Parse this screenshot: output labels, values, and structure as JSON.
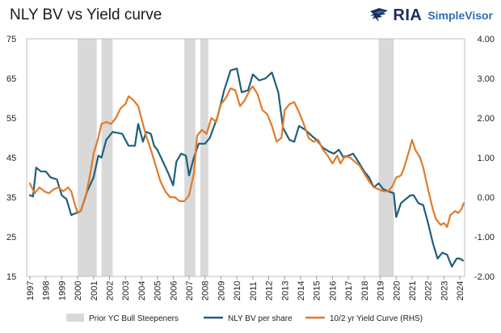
{
  "header": {
    "title": "NLY BV vs Yield curve",
    "logo_brand": "RIA",
    "logo_product": "SimpleVisor"
  },
  "chart_data": {
    "type": "line",
    "title": "NLY BV vs Yield curve",
    "x_range": [
      1996.8,
      2024.3
    ],
    "left_axis": {
      "ylim": [
        15,
        75
      ],
      "ticks": [
        "15",
        "25",
        "35",
        "45",
        "55",
        "65",
        "75"
      ]
    },
    "right_axis": {
      "ylim": [
        -2.0,
        4.0
      ],
      "ticks": [
        "-2.00",
        "-1.00",
        "0.00",
        "1.00",
        "2.00",
        "3.00",
        "4.00"
      ]
    },
    "x_ticks": [
      "1997",
      "1998",
      "1999",
      "2000",
      "2001",
      "2002",
      "2003",
      "2004",
      "2005",
      "2006",
      "2007",
      "2008",
      "2009",
      "2010",
      "2011",
      "2012",
      "2013",
      "2014",
      "2015",
      "2016",
      "2017",
      "2018",
      "2019",
      "2020",
      "2021",
      "2022",
      "2023",
      "2024"
    ],
    "grid": false,
    "legend_placement": "bottom",
    "shaded_periods": {
      "name": "Prior YC Bull Steepeners",
      "color": "#d9d9d9",
      "ranges": [
        [
          2000.0,
          2001.2
        ],
        [
          2001.5,
          2002.2
        ],
        [
          2006.7,
          2007.4
        ],
        [
          2007.7,
          2008.2
        ],
        [
          2018.9,
          2019.85
        ]
      ]
    },
    "series": [
      {
        "name": "NLY BV per share",
        "axis": "left",
        "color": "#1f5f7a",
        "points": [
          [
            1997.0,
            35.5
          ],
          [
            1997.2,
            35.2
          ],
          [
            1997.4,
            42.5
          ],
          [
            1997.7,
            41.5
          ],
          [
            1998.0,
            41.5
          ],
          [
            1998.3,
            40.0
          ],
          [
            1998.7,
            39.5
          ],
          [
            1999.0,
            35.5
          ],
          [
            1999.3,
            34.5
          ],
          [
            1999.6,
            30.5
          ],
          [
            1999.9,
            31.0
          ],
          [
            2000.2,
            31.5
          ],
          [
            2000.6,
            36.5
          ],
          [
            2001.0,
            40.0
          ],
          [
            2001.3,
            45.5
          ],
          [
            2001.5,
            45.0
          ],
          [
            2001.8,
            49.5
          ],
          [
            2002.2,
            51.5
          ],
          [
            2002.8,
            51.0
          ],
          [
            2003.2,
            48.0
          ],
          [
            2003.6,
            48.0
          ],
          [
            2003.8,
            53.5
          ],
          [
            2004.1,
            49.0
          ],
          [
            2004.3,
            51.5
          ],
          [
            2004.6,
            51.0
          ],
          [
            2004.8,
            48.0
          ],
          [
            2005.0,
            47.0
          ],
          [
            2005.3,
            44.5
          ],
          [
            2005.7,
            41.0
          ],
          [
            2006.0,
            38.0
          ],
          [
            2006.2,
            44.0
          ],
          [
            2006.5,
            46.0
          ],
          [
            2006.8,
            45.5
          ],
          [
            2007.0,
            40.5
          ],
          [
            2007.3,
            45.0
          ],
          [
            2007.6,
            48.5
          ],
          [
            2008.0,
            48.5
          ],
          [
            2008.3,
            50.0
          ],
          [
            2008.8,
            55.5
          ],
          [
            2009.2,
            62.0
          ],
          [
            2009.6,
            67.0
          ],
          [
            2010.0,
            67.5
          ],
          [
            2010.3,
            61.5
          ],
          [
            2010.7,
            62.0
          ],
          [
            2011.0,
            66.0
          ],
          [
            2011.4,
            64.5
          ],
          [
            2011.8,
            65.0
          ],
          [
            2012.2,
            66.5
          ],
          [
            2012.6,
            61.5
          ],
          [
            2012.9,
            52.5
          ],
          [
            2013.3,
            49.5
          ],
          [
            2013.6,
            49.0
          ],
          [
            2013.9,
            53.0
          ],
          [
            2014.3,
            52.0
          ],
          [
            2014.7,
            50.5
          ],
          [
            2015.0,
            49.5
          ],
          [
            2015.4,
            47.5
          ],
          [
            2015.8,
            46.5
          ],
          [
            2016.1,
            46.0
          ],
          [
            2016.4,
            47.0
          ],
          [
            2016.7,
            45.0
          ],
          [
            2017.0,
            45.5
          ],
          [
            2017.3,
            46.0
          ],
          [
            2017.7,
            43.5
          ],
          [
            2018.0,
            41.5
          ],
          [
            2018.3,
            40.0
          ],
          [
            2018.6,
            37.5
          ],
          [
            2018.9,
            38.5
          ],
          [
            2019.2,
            37.0
          ],
          [
            2019.5,
            36.5
          ],
          [
            2019.85,
            36.0
          ],
          [
            2020.0,
            30.0
          ],
          [
            2020.3,
            33.5
          ],
          [
            2020.6,
            34.5
          ],
          [
            2020.9,
            35.5
          ],
          [
            2021.1,
            35.5
          ],
          [
            2021.4,
            33.5
          ],
          [
            2021.7,
            33.0
          ],
          [
            2022.0,
            28.5
          ],
          [
            2022.3,
            23.5
          ],
          [
            2022.6,
            19.5
          ],
          [
            2022.9,
            21.0
          ],
          [
            2023.2,
            20.5
          ],
          [
            2023.5,
            17.5
          ],
          [
            2023.8,
            19.5
          ],
          [
            2024.0,
            19.5
          ],
          [
            2024.2,
            19.0
          ]
        ]
      },
      {
        "name": "10/2 yr Yield Curve (RHS)",
        "axis": "right",
        "color": "#e07b2a",
        "points": [
          [
            1997.0,
            0.35
          ],
          [
            1997.3,
            0.1
          ],
          [
            1997.6,
            0.25
          ],
          [
            1997.9,
            0.15
          ],
          [
            1998.2,
            0.1
          ],
          [
            1998.5,
            0.2
          ],
          [
            1998.8,
            0.25
          ],
          [
            1999.1,
            0.15
          ],
          [
            1999.4,
            0.25
          ],
          [
            1999.6,
            0.15
          ],
          [
            1999.8,
            -0.15
          ],
          [
            2000.0,
            -0.4
          ],
          [
            2000.2,
            -0.35
          ],
          [
            2000.5,
            0.0
          ],
          [
            2000.8,
            0.6
          ],
          [
            2001.0,
            1.1
          ],
          [
            2001.3,
            1.5
          ],
          [
            2001.5,
            1.85
          ],
          [
            2001.8,
            1.9
          ],
          [
            2002.1,
            1.85
          ],
          [
            2002.4,
            2.0
          ],
          [
            2002.7,
            2.25
          ],
          [
            2003.0,
            2.35
          ],
          [
            2003.2,
            2.55
          ],
          [
            2003.5,
            2.45
          ],
          [
            2003.8,
            2.3
          ],
          [
            2004.0,
            2.0
          ],
          [
            2004.3,
            1.55
          ],
          [
            2004.6,
            1.2
          ],
          [
            2004.9,
            0.8
          ],
          [
            2005.2,
            0.4
          ],
          [
            2005.5,
            0.15
          ],
          [
            2005.8,
            0.0
          ],
          [
            2006.1,
            0.0
          ],
          [
            2006.4,
            -0.1
          ],
          [
            2006.7,
            -0.1
          ],
          [
            2007.0,
            0.05
          ],
          [
            2007.3,
            0.6
          ],
          [
            2007.5,
            1.55
          ],
          [
            2007.8,
            1.7
          ],
          [
            2008.1,
            1.6
          ],
          [
            2008.4,
            2.0
          ],
          [
            2008.7,
            1.9
          ],
          [
            2009.0,
            2.35
          ],
          [
            2009.3,
            2.5
          ],
          [
            2009.6,
            2.75
          ],
          [
            2009.9,
            2.7
          ],
          [
            2010.2,
            2.3
          ],
          [
            2010.5,
            2.45
          ],
          [
            2010.8,
            2.7
          ],
          [
            2011.0,
            2.8
          ],
          [
            2011.3,
            2.6
          ],
          [
            2011.6,
            2.2
          ],
          [
            2011.9,
            2.1
          ],
          [
            2012.2,
            1.8
          ],
          [
            2012.5,
            1.4
          ],
          [
            2012.8,
            1.5
          ],
          [
            2013.0,
            2.2
          ],
          [
            2013.3,
            2.35
          ],
          [
            2013.6,
            2.4
          ],
          [
            2013.9,
            2.15
          ],
          [
            2014.2,
            1.85
          ],
          [
            2014.5,
            1.5
          ],
          [
            2014.8,
            1.4
          ],
          [
            2015.1,
            1.45
          ],
          [
            2015.4,
            1.2
          ],
          [
            2015.7,
            1.05
          ],
          [
            2016.0,
            0.85
          ],
          [
            2016.3,
            1.05
          ],
          [
            2016.5,
            0.85
          ],
          [
            2016.8,
            1.05
          ],
          [
            2017.1,
            1.0
          ],
          [
            2017.4,
            0.9
          ],
          [
            2017.7,
            0.8
          ],
          [
            2018.0,
            0.6
          ],
          [
            2018.3,
            0.4
          ],
          [
            2018.6,
            0.25
          ],
          [
            2018.9,
            0.2
          ],
          [
            2019.2,
            0.15
          ],
          [
            2019.5,
            0.15
          ],
          [
            2019.8,
            0.3
          ],
          [
            2020.0,
            0.5
          ],
          [
            2020.3,
            0.55
          ],
          [
            2020.5,
            0.75
          ],
          [
            2020.8,
            1.15
          ],
          [
            2021.0,
            1.45
          ],
          [
            2021.2,
            1.2
          ],
          [
            2021.5,
            1.0
          ],
          [
            2021.7,
            0.75
          ],
          [
            2022.0,
            0.2
          ],
          [
            2022.3,
            -0.3
          ],
          [
            2022.5,
            -0.55
          ],
          [
            2022.8,
            -0.7
          ],
          [
            2023.0,
            -0.65
          ],
          [
            2023.2,
            -0.75
          ],
          [
            2023.4,
            -0.45
          ],
          [
            2023.7,
            -0.35
          ],
          [
            2023.9,
            -0.4
          ],
          [
            2024.1,
            -0.3
          ],
          [
            2024.25,
            -0.15
          ]
        ]
      }
    ]
  }
}
